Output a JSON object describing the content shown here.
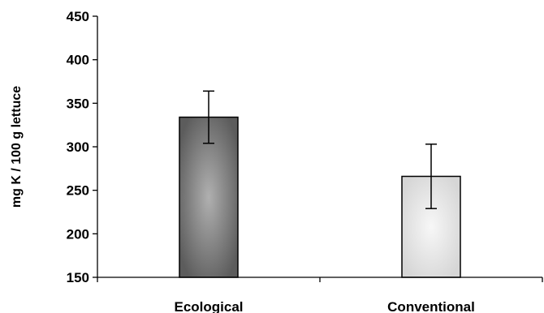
{
  "chart_data": {
    "type": "bar",
    "title": "",
    "xlabel": "",
    "ylabel": "mg K / 100 g lettuce",
    "categories": [
      "Ecological",
      "Conventional"
    ],
    "series": [
      {
        "values": [
          334,
          266
        ],
        "error": [
          30,
          37
        ],
        "colors": [
          "#7a7a7a",
          "#e4e4e4"
        ]
      }
    ],
    "ylim": [
      150,
      450
    ],
    "yticks": [
      150,
      200,
      250,
      300,
      350,
      400,
      450
    ],
    "grid": false,
    "legend": "none"
  }
}
